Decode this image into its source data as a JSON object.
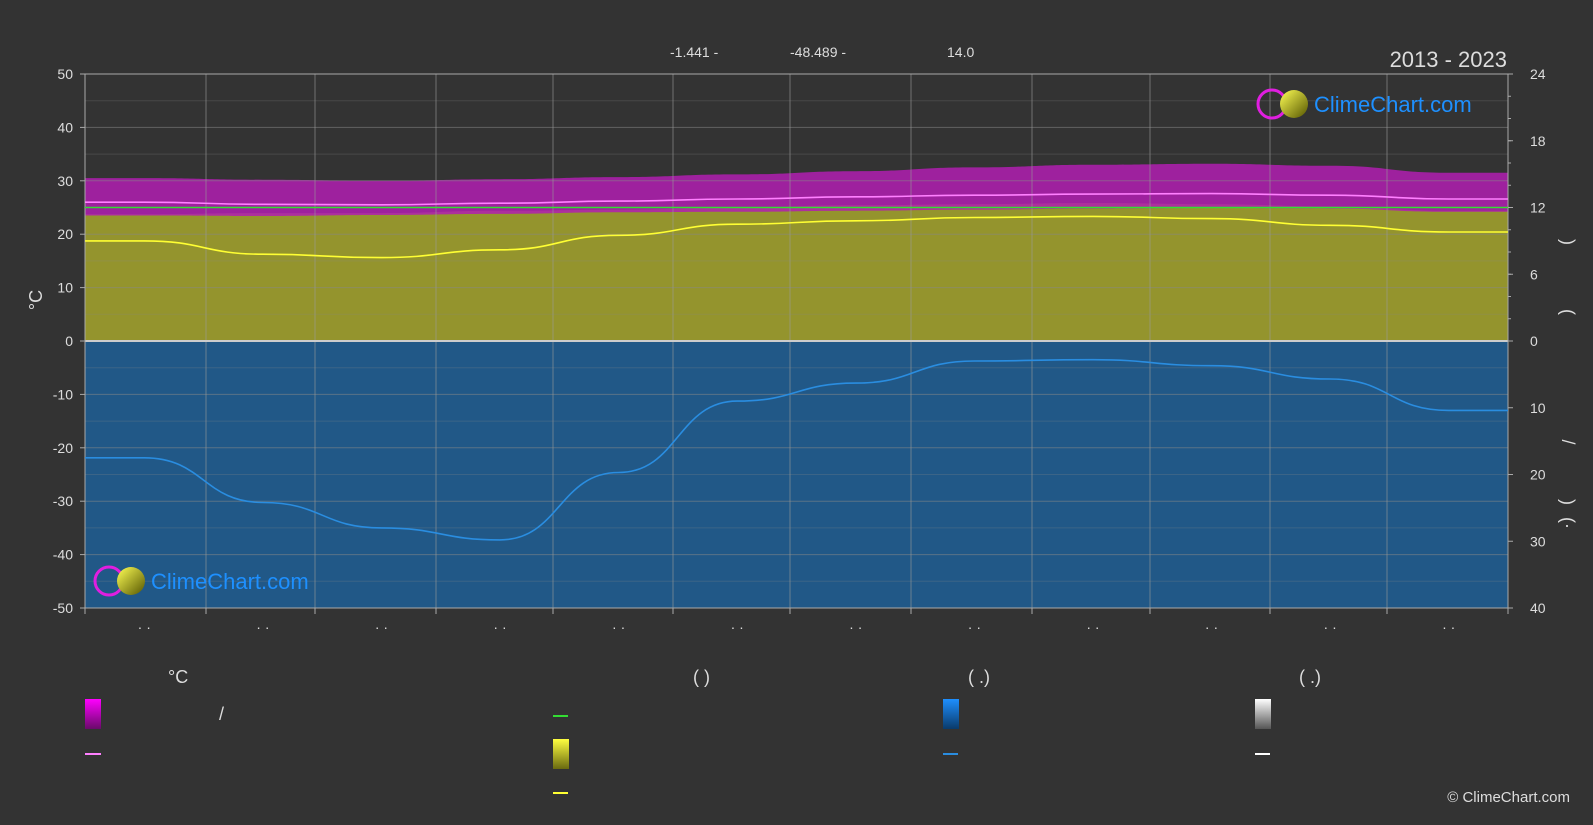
{
  "header": {
    "lat": "-1.441 -",
    "lon": "-48.489 -",
    "elev": "14.0",
    "period": "2013 - 2023"
  },
  "logo": {
    "text": "ClimeChart.com"
  },
  "copyright": "© ClimeChart.com",
  "left_axis_title": "°C",
  "right_axis_chars": [
    ")",
    "(",
    "/",
    ")",
    "(·"
  ],
  "legend": {
    "headings": [
      "°C",
      "(            )",
      "(    .)",
      "(    .)"
    ],
    "slash": "/"
  },
  "colors": {
    "background": "#333333",
    "temp_band": "#e01ee0",
    "temp_line": "#ff80ff",
    "green_line": "#33dd33",
    "sun_band": "#b8b830",
    "sun_line": "#ffff33",
    "rain_band": "#1f6fb0",
    "rain_line": "#2a8de0",
    "snow_band": "#ffffff"
  },
  "chart_data": {
    "type": "area",
    "x_months": [
      1,
      2,
      3,
      4,
      5,
      6,
      7,
      8,
      9,
      10,
      11,
      12
    ],
    "month_tick_labels": [
      "· ·",
      "· ·",
      "· ·",
      "· ·",
      "· ·",
      "· ·",
      "· ·",
      "· ·",
      "· ·",
      "· ·",
      "· ·",
      "· ·"
    ],
    "left_axis": {
      "unit": "°C",
      "ylim": [
        -50,
        50
      ],
      "ticks": [
        50,
        40,
        30,
        20,
        10,
        0,
        -10,
        -20,
        -30,
        -40,
        -50
      ]
    },
    "right_axis_top": {
      "ylim": [
        0,
        24
      ],
      "ticks": [
        24,
        18,
        12,
        6,
        0
      ]
    },
    "right_axis_bottom": {
      "ylim": [
        0,
        40
      ],
      "ticks": [
        0,
        10,
        20,
        30,
        40
      ]
    },
    "series": [
      {
        "kind": "band",
        "axis": "left",
        "color": "#e01ee0",
        "low": [
          23.5,
          23.4,
          23.6,
          23.8,
          24.1,
          24.2,
          24.4,
          24.6,
          24.8,
          24.9,
          24.8,
          24.2
        ],
        "high": [
          30.5,
          30.2,
          30.0,
          30.3,
          30.7,
          31.2,
          31.8,
          32.5,
          33.0,
          33.2,
          32.8,
          31.5
        ]
      },
      {
        "kind": "line",
        "axis": "left",
        "color": "#ff80ff",
        "values": [
          26.0,
          25.6,
          25.5,
          25.8,
          26.2,
          26.6,
          27.0,
          27.3,
          27.5,
          27.6,
          27.3,
          26.6
        ]
      },
      {
        "kind": "line",
        "axis": "left",
        "color": "#33dd33",
        "values": [
          25.0,
          25.0,
          25.0,
          25.0,
          25.0,
          25.0,
          25.0,
          25.0,
          25.0,
          25.0,
          25.0,
          25.0
        ]
      },
      {
        "kind": "band_from_zero",
        "axis": "right_top",
        "color": "#b8b830",
        "values": [
          11.4,
          11.5,
          11.5,
          11.7,
          11.8,
          12.0,
          12.2,
          12.3,
          12.4,
          12.3,
          12.1,
          11.7
        ]
      },
      {
        "kind": "line",
        "axis": "right_top",
        "color": "#ffff33",
        "values": [
          9.0,
          7.8,
          7.5,
          8.2,
          9.5,
          10.5,
          10.8,
          11.1,
          11.2,
          11.0,
          10.4,
          9.8
        ]
      },
      {
        "kind": "band_from_zero",
        "axis": "right_bottom",
        "color": "#1f6fb0",
        "values": [
          40,
          40,
          40,
          40,
          40,
          40,
          40,
          40,
          40,
          40,
          40,
          40
        ]
      },
      {
        "kind": "line",
        "axis": "right_bottom",
        "color": "#2a8de0",
        "values": [
          17.5,
          24.2,
          28.0,
          29.8,
          19.7,
          9.0,
          6.3,
          3.0,
          2.8,
          3.7,
          5.7,
          10.4
        ]
      }
    ]
  }
}
